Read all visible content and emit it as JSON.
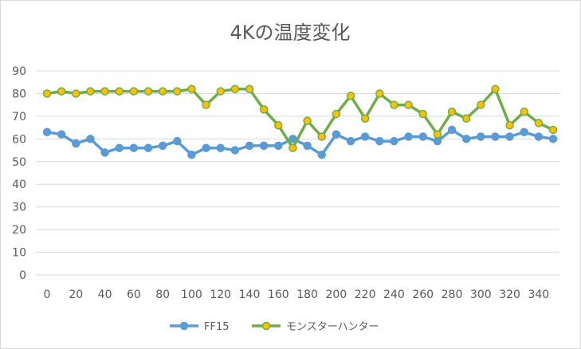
{
  "chart_data": {
    "type": "line",
    "title": "4Kの温度変化",
    "xlabel": "",
    "ylabel": "",
    "ylim": [
      0,
      90
    ],
    "yticks": [
      0,
      10,
      20,
      30,
      40,
      50,
      60,
      70,
      80,
      90
    ],
    "xticks": [
      0,
      20,
      40,
      60,
      80,
      100,
      120,
      140,
      160,
      180,
      200,
      220,
      240,
      260,
      280,
      300,
      320,
      340
    ],
    "x": [
      0,
      10,
      20,
      30,
      40,
      50,
      60,
      70,
      80,
      90,
      100,
      110,
      120,
      130,
      140,
      150,
      160,
      170,
      180,
      190,
      200,
      210,
      220,
      230,
      240,
      250,
      260,
      270,
      280,
      290,
      300,
      310,
      320,
      330,
      340,
      350
    ],
    "grid": true,
    "legend_position": "bottom",
    "series": [
      {
        "name": "FF15",
        "color": "#5b9bd5",
        "marker_fill": "#5b9bd5",
        "values": [
          63,
          62,
          58,
          60,
          54,
          56,
          56,
          56,
          57,
          59,
          53,
          56,
          56,
          55,
          57,
          57,
          57,
          60,
          57,
          53,
          62,
          59,
          61,
          59,
          59,
          61,
          61,
          59,
          64,
          60,
          61,
          61,
          61,
          63,
          61,
          60
        ]
      },
      {
        "name": "モンスターハンター",
        "color": "#70ad47",
        "marker_fill": "#ffc000",
        "values": [
          80,
          81,
          80,
          81,
          81,
          81,
          81,
          81,
          81,
          81,
          82,
          75,
          81,
          82,
          82,
          73,
          66,
          56,
          68,
          61,
          71,
          79,
          69,
          80,
          75,
          75,
          71,
          62,
          72,
          69,
          75,
          82,
          66,
          72,
          67,
          64
        ]
      }
    ]
  }
}
